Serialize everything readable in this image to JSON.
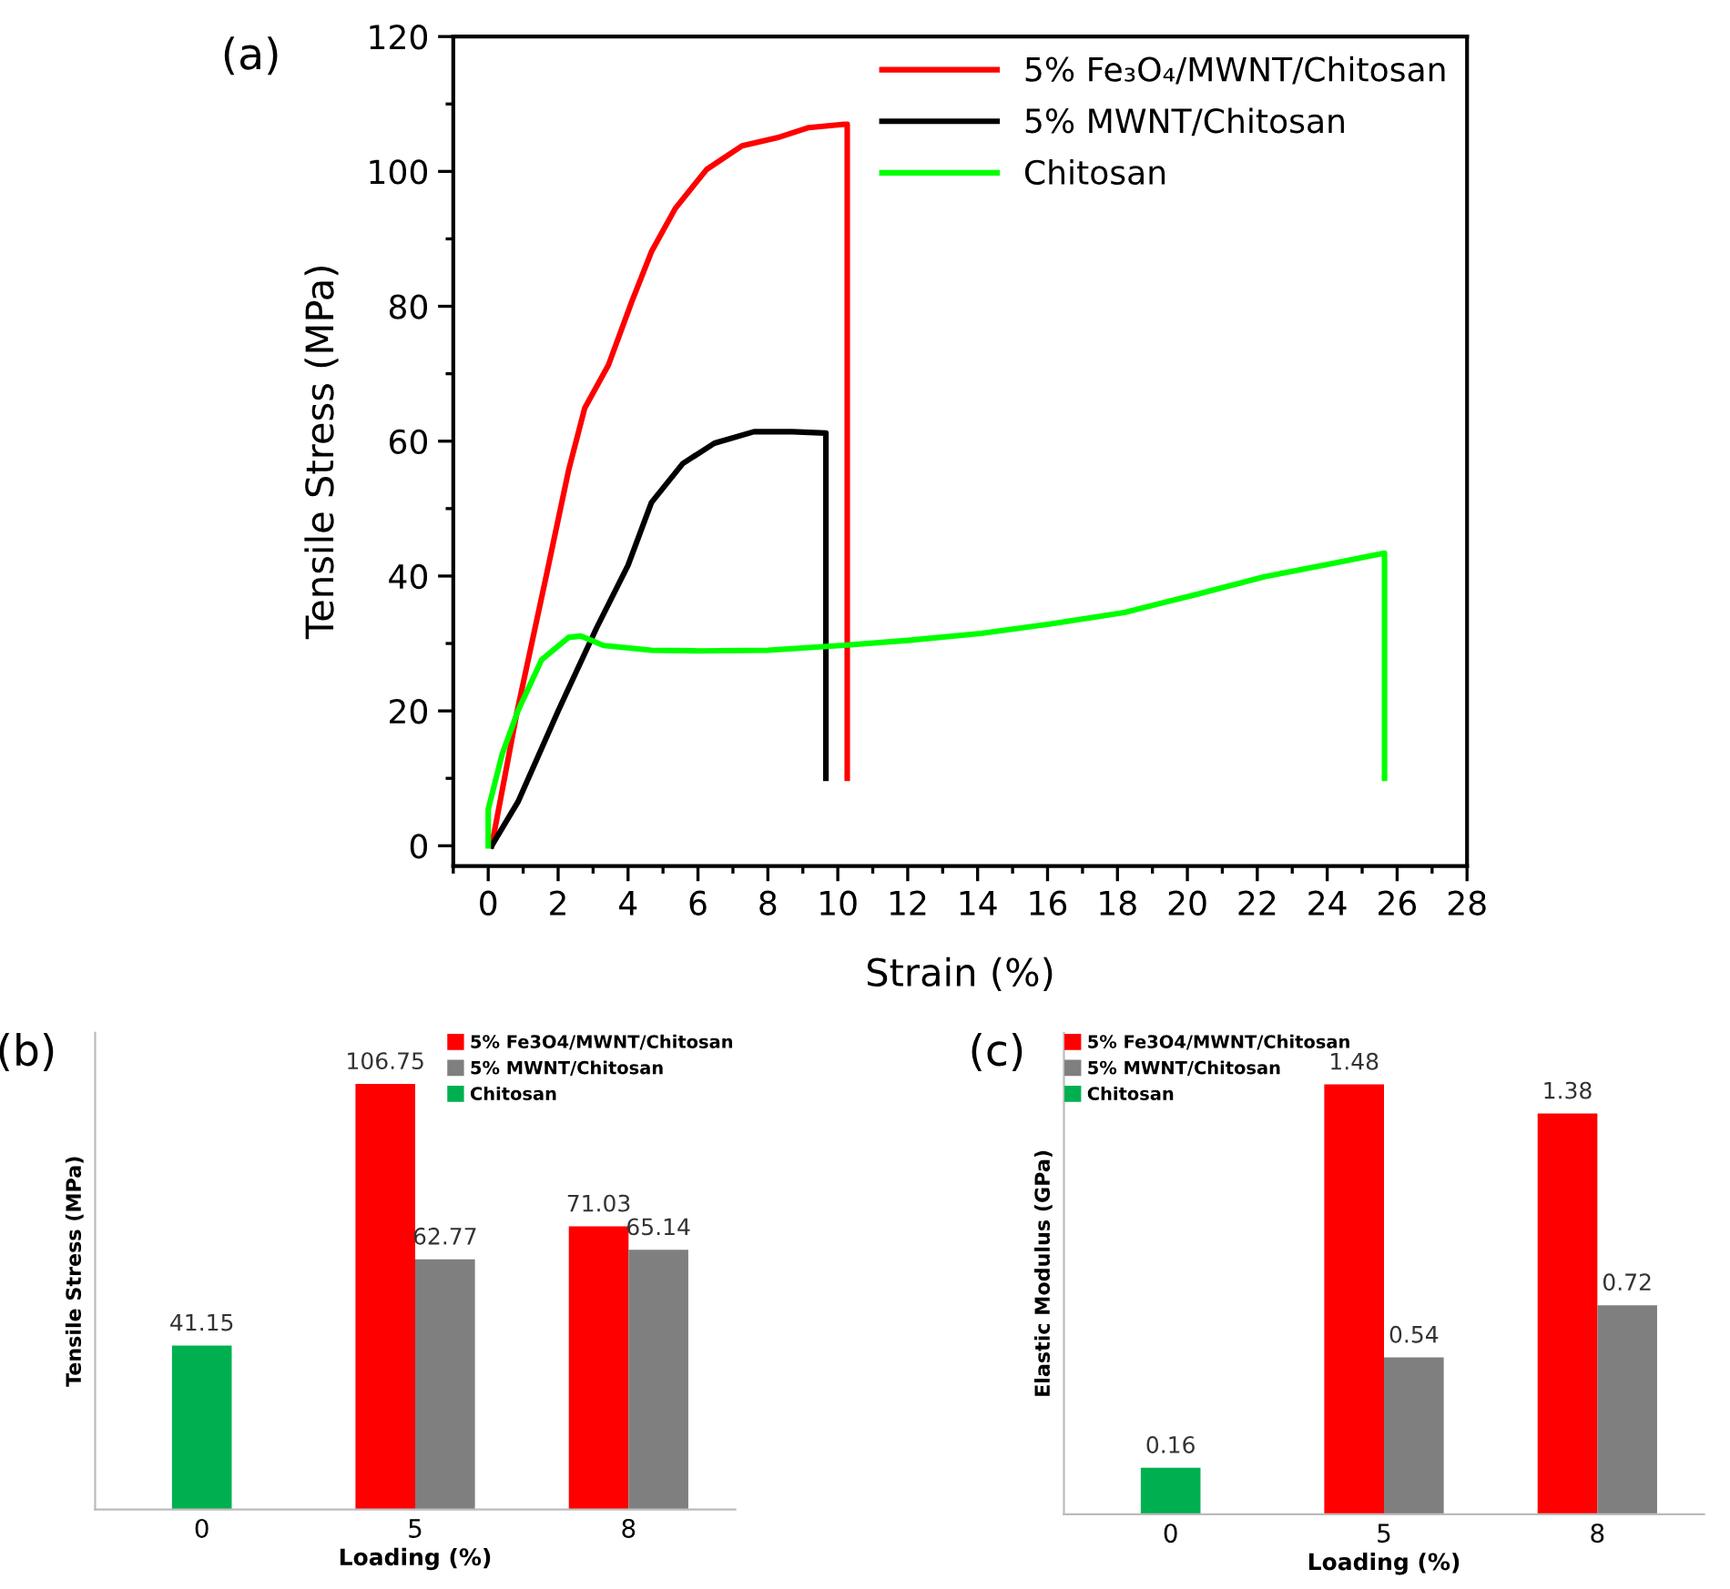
{
  "chart_data": [
    {
      "type": "line",
      "title": "(a)",
      "xlabel": "Strain (%)",
      "ylabel": "Tensile Stress (MPa)",
      "xlim": [
        -1,
        28
      ],
      "ylim": [
        -3,
        120
      ],
      "xticks": [
        0,
        2,
        4,
        6,
        8,
        10,
        12,
        14,
        16,
        18,
        20,
        22,
        24,
        26,
        28
      ],
      "yticks": [
        0,
        20,
        40,
        60,
        80,
        100,
        120
      ],
      "legend": "top right",
      "grid": false,
      "marker": "none",
      "line_style": "solid",
      "series": [
        {
          "name": "5% Fe₃O₄/MWNT/Chitosan",
          "color": "#ff0000",
          "x": [
            0.1,
            0.83,
            1.66,
            2.3,
            2.76,
            3.44,
            4.1,
            4.67,
            5.35,
            6.25,
            7.26,
            8.27,
            9.17,
            10.2,
            10.27,
            10.27
          ],
          "values": [
            0,
            20,
            40,
            55.7,
            64.9,
            71.3,
            80.6,
            88.1,
            94.5,
            100.3,
            103.8,
            105,
            106.5,
            107,
            107,
            10
          ]
        },
        {
          "name": "5% MWNT/Chitosan",
          "color": "#000000",
          "x": [
            0.1,
            0.85,
            2,
            3.1,
            4,
            4.67,
            5.57,
            6.47,
            7.6,
            8.7,
            9.66,
            9.66
          ],
          "values": [
            0,
            6.5,
            20,
            32.3,
            41.6,
            50.9,
            56.7,
            59.7,
            61.4,
            61.4,
            61.2,
            10
          ]
        },
        {
          "name": "Chitosan",
          "color": "#00ff00",
          "x": [
            0,
            0,
            0.4,
            0.85,
            1.53,
            2.3,
            2.65,
            3.3,
            4.67,
            6,
            8,
            10.1,
            12.1,
            14.1,
            16.1,
            18.2,
            20.2,
            22.2,
            24.2,
            25.64,
            25.64
          ],
          "values": [
            0,
            5.4,
            13.6,
            20,
            27.6,
            30.9,
            31.1,
            29.7,
            29,
            28.9,
            29,
            29.7,
            30.5,
            31.5,
            32.9,
            34.6,
            37.2,
            39.9,
            41.9,
            43.4,
            10
          ]
        }
      ]
    },
    {
      "type": "bar",
      "title": "(b)",
      "xlabel": "Loading (%)",
      "ylabel": "Tensile Stress (MPa)",
      "categories": [
        "0",
        "5",
        "8"
      ],
      "legend": "top right",
      "data_labels": true,
      "tick_labels": "x",
      "series": [
        {
          "name": "5% Fe3O4/MWNT/Chitosan",
          "color": "#ff0000",
          "values": [
            null,
            106.75,
            71.03
          ]
        },
        {
          "name": "5% MWNT/Chitosan",
          "color": "#7f7f7f",
          "values": [
            null,
            62.77,
            65.14
          ]
        },
        {
          "name": "Chitosan",
          "color": "#00b050",
          "values": [
            41.15,
            null,
            null
          ]
        }
      ]
    },
    {
      "type": "bar",
      "title": "(c)",
      "xlabel": "Loading (%)",
      "ylabel": "Elastic Modulus (GPa)",
      "categories": [
        "0",
        "5",
        "8"
      ],
      "legend": "top left",
      "data_labels": true,
      "tick_labels": "x",
      "series": [
        {
          "name": "5% Fe3O4/MWNT/Chitosan",
          "color": "#ff0000",
          "values": [
            null,
            1.48,
            1.38
          ]
        },
        {
          "name": "5% MWNT/Chitosan",
          "color": "#7f7f7f",
          "values": [
            null,
            0.54,
            0.72
          ]
        },
        {
          "name": "Chitosan",
          "color": "#00b050",
          "values": [
            0.16,
            null,
            null
          ]
        }
      ]
    }
  ]
}
